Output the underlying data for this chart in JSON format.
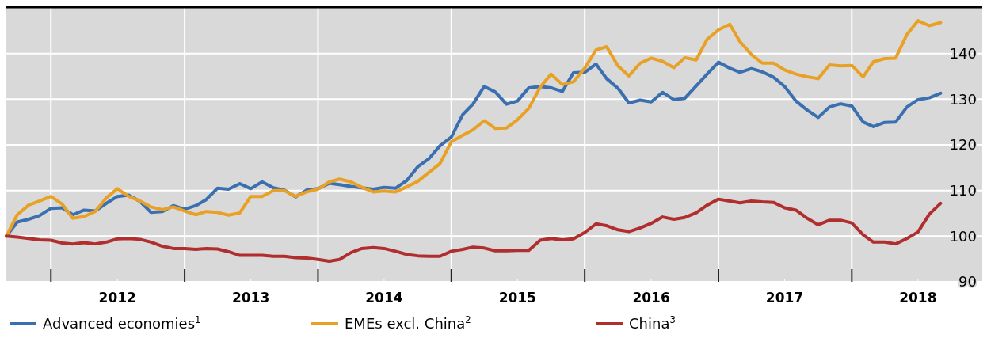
{
  "chart_data": {
    "type": "line",
    "x": [
      "2011-09",
      "2011-10",
      "2011-11",
      "2011-12",
      "2012-01",
      "2012-02",
      "2012-03",
      "2012-04",
      "2012-05",
      "2012-06",
      "2012-07",
      "2012-08",
      "2012-09",
      "2012-10",
      "2012-11",
      "2012-12",
      "2013-01",
      "2013-02",
      "2013-03",
      "2013-04",
      "2013-05",
      "2013-06",
      "2013-07",
      "2013-08",
      "2013-09",
      "2013-10",
      "2013-11",
      "2013-12",
      "2014-01",
      "2014-02",
      "2014-03",
      "2014-04",
      "2014-05",
      "2014-06",
      "2014-07",
      "2014-08",
      "2014-09",
      "2014-10",
      "2014-11",
      "2014-12",
      "2015-01",
      "2015-02",
      "2015-03",
      "2015-04",
      "2015-05",
      "2015-06",
      "2015-07",
      "2015-08",
      "2015-09",
      "2015-10",
      "2015-11",
      "2015-12",
      "2016-01",
      "2016-02",
      "2016-03",
      "2016-04",
      "2016-05",
      "2016-06",
      "2016-07",
      "2016-08",
      "2016-09",
      "2016-10",
      "2016-11",
      "2016-12",
      "2017-01",
      "2017-02",
      "2017-03",
      "2017-04",
      "2017-05",
      "2017-06",
      "2017-07",
      "2017-08",
      "2017-09",
      "2017-10",
      "2017-11",
      "2017-12",
      "2018-01",
      "2018-02",
      "2018-03",
      "2018-04",
      "2018-05",
      "2018-06",
      "2018-07",
      "2018-08",
      "2018-09"
    ],
    "series": [
      {
        "name": "Advanced economies$^{1}$",
        "color": "#3a6fb0",
        "values": [
          100,
          103.1,
          103.7,
          104.5,
          106.1,
          106.2,
          104.7,
          105.7,
          105.5,
          107.2,
          108.7,
          109.0,
          107.6,
          105.2,
          105.4,
          106.7,
          105.9,
          106.7,
          108.0,
          110.5,
          110.3,
          111.5,
          110.4,
          111.9,
          110.6,
          110.1,
          108.6,
          110.1,
          110.4,
          111.6,
          111.3,
          110.9,
          110.6,
          110.3,
          110.7,
          110.5,
          112.2,
          115.2,
          117.0,
          119.8,
          121.7,
          126.6,
          128.9,
          132.8,
          131.6,
          128.9,
          129.6,
          132.5,
          132.8,
          132.5,
          131.7,
          135.8,
          135.9,
          137.7,
          134.5,
          132.4,
          129.2,
          129.8,
          129.4,
          131.5,
          129.9,
          130.2,
          132.9,
          135.5,
          138.1,
          136.8,
          135.9,
          136.7,
          136.0,
          134.8,
          132.8,
          129.6,
          127.6,
          126.0,
          128.3,
          129.0,
          128.5,
          125.0,
          124.0,
          124.9,
          125.0,
          128.3,
          129.9,
          130.3,
          131.3
        ]
      },
      {
        "name": "EMEs excl. China$^{2}$",
        "color": "#e9a125",
        "values": [
          100,
          104.7,
          106.8,
          107.7,
          108.7,
          107.0,
          103.9,
          104.3,
          105.4,
          108.4,
          110.4,
          108.7,
          107.7,
          106.4,
          105.8,
          106.4,
          105.5,
          104.7,
          105.4,
          105.2,
          104.6,
          105.1,
          108.7,
          108.7,
          110.0,
          110.0,
          108.7,
          109.7,
          110.3,
          111.9,
          112.5,
          111.9,
          110.7,
          109.7,
          109.9,
          109.7,
          110.8,
          112.0,
          114.0,
          115.9,
          120.7,
          122.1,
          123.3,
          125.3,
          123.6,
          123.7,
          125.5,
          128.0,
          132.6,
          135.5,
          133.2,
          133.8,
          136.8,
          140.8,
          141.5,
          137.3,
          135.1,
          137.9,
          139.0,
          138.3,
          136.9,
          139.1,
          138.6,
          143.1,
          145.2,
          146.4,
          142.6,
          139.8,
          137.9,
          137.9,
          136.4,
          135.5,
          134.9,
          134.5,
          137.5,
          137.3,
          137.4,
          134.9,
          138.2,
          138.9,
          139.0,
          144.2,
          147.2,
          146.1,
          146.8
        ]
      },
      {
        "name": "China$^{3}$",
        "color": "#b02e2e",
        "values": [
          100,
          99.8,
          99.5,
          99.2,
          99.1,
          98.5,
          98.3,
          98.6,
          98.3,
          98.7,
          99.4,
          99.5,
          99.3,
          98.7,
          97.8,
          97.3,
          97.3,
          97.1,
          97.3,
          97.2,
          96.6,
          95.8,
          95.8,
          95.8,
          95.6,
          95.6,
          95.3,
          95.2,
          94.9,
          94.5,
          94.9,
          96.4,
          97.3,
          97.5,
          97.3,
          96.7,
          96.0,
          95.7,
          95.6,
          95.6,
          96.7,
          97.1,
          97.6,
          97.4,
          96.8,
          96.8,
          96.9,
          96.9,
          99.1,
          99.5,
          99.2,
          99.4,
          100.8,
          102.7,
          102.3,
          101.4,
          101.0,
          101.8,
          102.8,
          104.2,
          103.7,
          104.1,
          105.1,
          106.8,
          108.1,
          107.7,
          107.3,
          107.7,
          107.5,
          107.4,
          106.2,
          105.7,
          103.9,
          102.5,
          103.5,
          103.5,
          102.9,
          100.3,
          98.7,
          98.7,
          98.3,
          99.5,
          100.9,
          104.8,
          107.2
        ]
      }
    ],
    "xlim": [
      "2011-09",
      "2018-12-24"
    ],
    "xticks": [
      {
        "value": "2012-01",
        "label": null
      },
      {
        "value": "2012-07",
        "label": "2012"
      },
      {
        "value": "2013-01",
        "label": null
      },
      {
        "value": "2013-07",
        "label": "2013"
      },
      {
        "value": "2014-01",
        "label": null
      },
      {
        "value": "2014-07",
        "label": "2014"
      },
      {
        "value": "2015-01",
        "label": null
      },
      {
        "value": "2015-07",
        "label": "2015"
      },
      {
        "value": "2016-01",
        "label": null
      },
      {
        "value": "2016-07",
        "label": "2016"
      },
      {
        "value": "2017-01",
        "label": null
      },
      {
        "value": "2017-07",
        "label": "2017"
      },
      {
        "value": "2018-01",
        "label": null
      },
      {
        "value": "2018-07",
        "label": "2018"
      }
    ],
    "ylim": [
      90,
      150
    ],
    "yticks": [
      90,
      100,
      110,
      120,
      130,
      140
    ],
    "grid": true,
    "legend": "bottom",
    "line_style": "solid"
  }
}
